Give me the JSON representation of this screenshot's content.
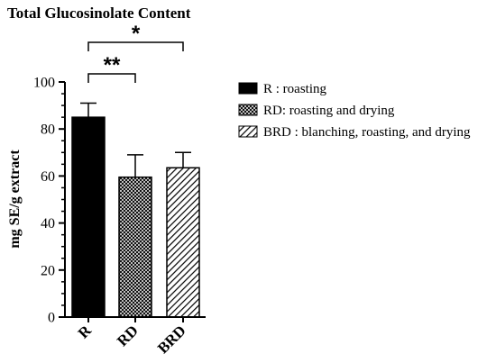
{
  "chart_data": {
    "type": "bar",
    "title": "Total Glucosinolate Content",
    "xlabel": "",
    "ylabel": "mg SE/g extract",
    "ylim": [
      0,
      100
    ],
    "yticks": [
      "0",
      "20",
      "40",
      "60",
      "80",
      "100"
    ],
    "categories": [
      "R",
      "RD",
      "BRD"
    ],
    "values": [
      85,
      59.5,
      63.5
    ],
    "errors": [
      6,
      9.5,
      6.5
    ],
    "fills": [
      "solid",
      "crosshatch",
      "diagonal"
    ],
    "legend_position": "right",
    "legend": [
      {
        "label": "R : roasting",
        "fill": "solid"
      },
      {
        "label": "RD: roasting and drying",
        "fill": "crosshatch"
      },
      {
        "label": "BRD : blanching, roasting, and drying",
        "fill": "diagonal"
      }
    ],
    "significance": [
      {
        "from": "R",
        "to": "BRD",
        "label": "*"
      },
      {
        "from": "R",
        "to": "RD",
        "label": "**"
      }
    ],
    "colors": {
      "bar": "#000000",
      "background": "#ffffff"
    }
  }
}
